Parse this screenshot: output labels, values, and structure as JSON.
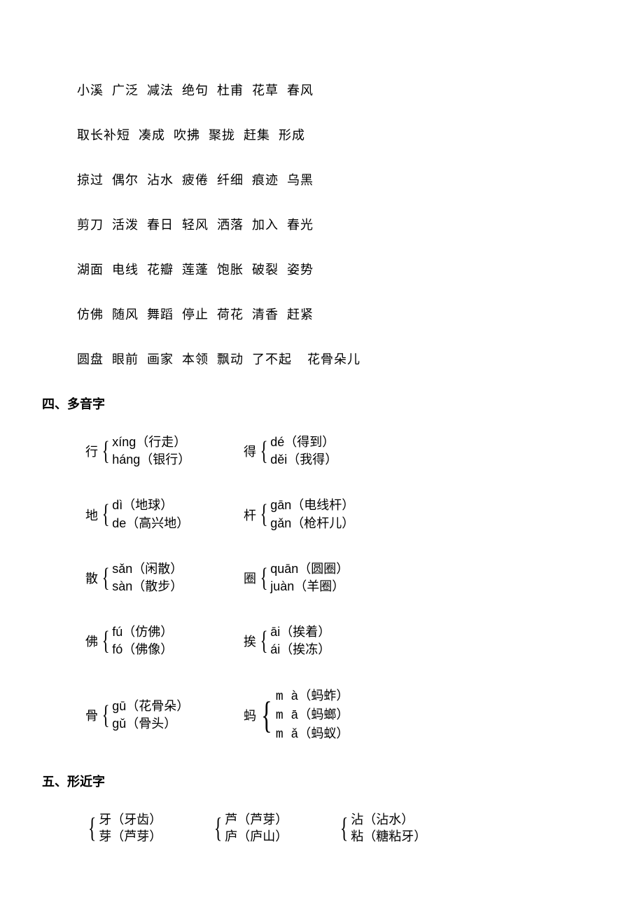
{
  "word_lines": [
    [
      "小溪",
      "广泛",
      "减法",
      "绝句",
      "杜甫",
      "花草",
      "春风"
    ],
    [
      "取长补短",
      "凑成",
      "吹拂",
      "聚拢",
      "赶集",
      "形成"
    ],
    [
      "掠过",
      "偶尔",
      "沾水",
      "疲倦",
      "纤细",
      "痕迹",
      "乌黑"
    ],
    [
      "剪刀",
      "活泼",
      "春日",
      "轻风",
      "洒落",
      "加入",
      "春光"
    ],
    [
      "湖面",
      "电线",
      "花瓣",
      "莲蓬",
      "饱胀",
      "破裂",
      "姿势"
    ],
    [
      "仿佛",
      "随风",
      "舞蹈",
      "停止",
      "荷花",
      "清香",
      "赶紧"
    ],
    [
      "圆盘",
      "眼前",
      "画家",
      "本领",
      "飘动",
      "了不起",
      "花骨朵儿"
    ]
  ],
  "heading_polyphone": "四、多音字",
  "polyphones": [
    [
      {
        "char": "行",
        "readings": [
          {
            "py": "xíng",
            "word": "（行走）"
          },
          {
            "py": "háng",
            "word": "（银行）"
          }
        ],
        "pinyin_font": "pinyin"
      },
      {
        "char": "得",
        "readings": [
          {
            "py": "dé",
            "word": "（得到）"
          },
          {
            "py": "děi",
            "word": "（我得）"
          }
        ],
        "pinyin_font": "pinyin"
      }
    ],
    [
      {
        "char": "地",
        "readings": [
          {
            "py": "dì",
            "word": "（地球）"
          },
          {
            "py": "de",
            "word": "（高兴地）"
          }
        ],
        "pinyin_font": "pinyin"
      },
      {
        "char": "杆",
        "readings": [
          {
            "py": "gān",
            "word": "（电线杆）"
          },
          {
            "py": "gǎn",
            "word": "（枪杆儿）"
          }
        ],
        "pinyin_font": "pinyin"
      }
    ],
    [
      {
        "char": "散",
        "readings": [
          {
            "py": "sǎn",
            "word": "（闲散）"
          },
          {
            "py": "sàn",
            "word": "（散步）"
          }
        ],
        "pinyin_font": "pinyin"
      },
      {
        "char": "圈",
        "readings": [
          {
            "py": "quān",
            "word": "（圆圈）"
          },
          {
            "py": "juàn",
            "word": "（羊圈）"
          }
        ],
        "pinyin_font": "pinyin"
      }
    ],
    [
      {
        "char": "佛",
        "readings": [
          {
            "py": "fú",
            "word": "（仿佛）"
          },
          {
            "py": "fó",
            "word": "（佛像）"
          }
        ],
        "pinyin_font": "pinyin"
      },
      {
        "char": "挨",
        "readings": [
          {
            "py": "āi",
            "word": "（挨着）"
          },
          {
            "py": "ái",
            "word": "（挨冻）"
          }
        ],
        "pinyin_font": "pinyin"
      }
    ],
    [
      {
        "char": "骨",
        "readings": [
          {
            "py": "gū",
            "word": "（花骨朵）"
          },
          {
            "py": "gǔ",
            "word": "（骨头）"
          }
        ],
        "pinyin_font": "pinyin"
      },
      {
        "char": "蚂",
        "readings": [
          {
            "py": "m à",
            "word": "（蚂蚱）"
          },
          {
            "py": "m ā",
            "word": "（蚂螂）"
          },
          {
            "py": "m ǎ",
            "word": "（蚂蚁）"
          }
        ],
        "pinyin_font": "monofont",
        "tall": true
      }
    ]
  ],
  "heading_near": "五、形近字",
  "near_chars": [
    {
      "pairs": [
        {
          "a": "牙（牙齿）",
          "b": "芽（芦芽）"
        }
      ]
    },
    {
      "pairs": [
        {
          "a": "芦（芦芽）",
          "b": "庐（庐山）"
        }
      ]
    },
    {
      "pairs": [
        {
          "a": "沾（沾水）",
          "b": "粘（糖粘牙）"
        }
      ]
    }
  ]
}
